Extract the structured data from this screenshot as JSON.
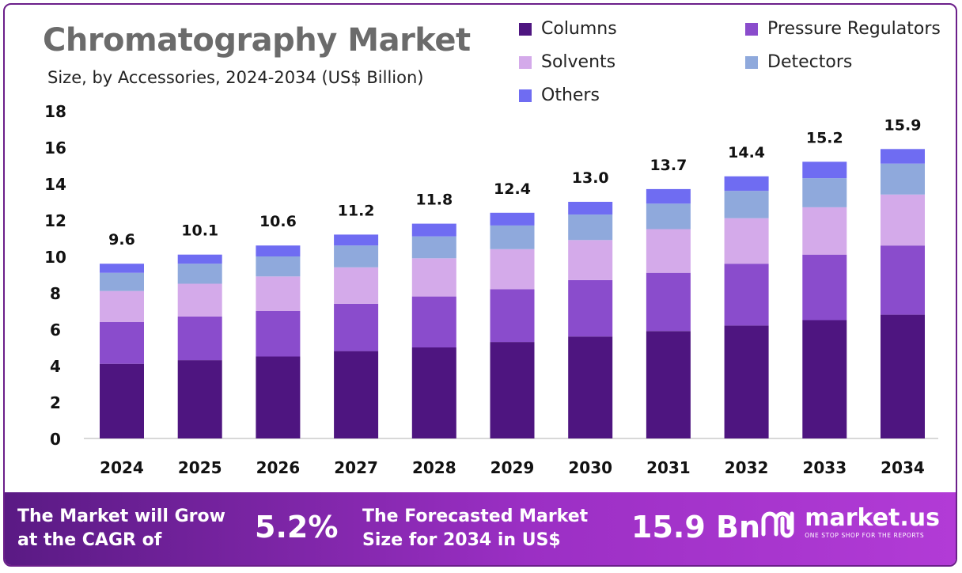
{
  "header": {
    "title": "Chromatography Market",
    "subtitle": "Size, by Accessories, 2024-2034 (US$ Billion)"
  },
  "colors": {
    "Columns": "#4e1580",
    "Pressure Regulators": "#8a4ccc",
    "Solvents": "#d4aaea",
    "Detectors": "#8fa9dc",
    "Others": "#6f6cf2",
    "axis": "#cccccc",
    "banner_start": "#5a1a84",
    "banner_end": "#b23bd6"
  },
  "chart_data": {
    "type": "bar",
    "stacked": true,
    "categories": [
      "2024",
      "2025",
      "2026",
      "2027",
      "2028",
      "2029",
      "2030",
      "2031",
      "2032",
      "2033",
      "2034"
    ],
    "series": [
      {
        "name": "Columns",
        "values": [
          4.1,
          4.3,
          4.5,
          4.8,
          5.0,
          5.3,
          5.6,
          5.9,
          6.2,
          6.5,
          6.8
        ]
      },
      {
        "name": "Pressure Regulators",
        "values": [
          2.3,
          2.4,
          2.5,
          2.6,
          2.8,
          2.9,
          3.1,
          3.2,
          3.4,
          3.6,
          3.8
        ]
      },
      {
        "name": "Solvents",
        "values": [
          1.7,
          1.8,
          1.9,
          2.0,
          2.1,
          2.2,
          2.2,
          2.4,
          2.5,
          2.6,
          2.8
        ]
      },
      {
        "name": "Detectors",
        "values": [
          1.0,
          1.1,
          1.1,
          1.2,
          1.2,
          1.3,
          1.4,
          1.4,
          1.5,
          1.6,
          1.7
        ]
      },
      {
        "name": "Others",
        "values": [
          0.5,
          0.5,
          0.6,
          0.6,
          0.7,
          0.7,
          0.7,
          0.8,
          0.8,
          0.9,
          0.8
        ]
      }
    ],
    "totals": [
      "9.6",
      "10.1",
      "10.6",
      "11.2",
      "11.8",
      "12.4",
      "13.0",
      "13.7",
      "14.4",
      "15.2",
      "15.9"
    ],
    "ylim": [
      0,
      18
    ],
    "yticks": [
      "0",
      "2",
      "4",
      "6",
      "8",
      "10",
      "12",
      "14",
      "16",
      "18"
    ],
    "legend": {
      "position": "top-right",
      "entries": [
        "Columns",
        "Pressure Regulators",
        "Solvents",
        "Detectors",
        "Others"
      ]
    },
    "grid": false
  },
  "banner": {
    "cagr_text_line1": "The Market will Grow",
    "cagr_text_line2": "at the CAGR of",
    "cagr_value": "5.2%",
    "forecast_text_line1": "The Forecasted Market",
    "forecast_text_line2": "Size for 2034 in US$",
    "forecast_value": "15.9 Bn",
    "logo_name": "market.us",
    "logo_tagline": "ONE STOP SHOP FOR THE REPORTS"
  }
}
